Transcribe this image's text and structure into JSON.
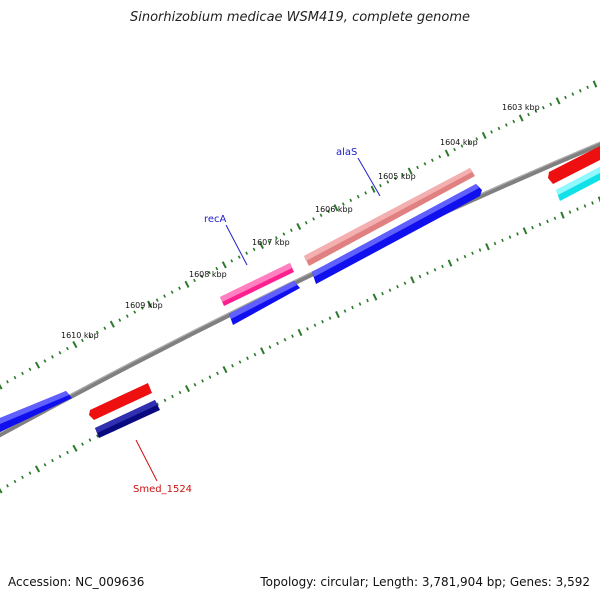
{
  "title": "Sinorhizobium medicae WSM419, complete genome",
  "footer": {
    "accession": "Accession: NC_009636",
    "summary": "Topology: circular; Length: 3,781,904 bp; Genes: 3,592"
  },
  "colors": {
    "backbone": "#808080",
    "ticks": "#2a7a2a",
    "blue": "#1010ee",
    "navy": "#0a0a80",
    "red": "#ee1010",
    "salmon": "#e08080",
    "magenta": "#ff2090",
    "cyan": "#10e0e8",
    "label_blue": "#2020cc",
    "label_red": "#cc1010"
  },
  "tick_labels": [
    "1603 kbp",
    "1604 kbp",
    "1605 kbp",
    "1606 kbp",
    "1607 kbp",
    "1608 kbp",
    "1609 kbp",
    "1610 kbp"
  ],
  "gene_labels": [
    "alaS",
    "recA",
    "Smed_1524"
  ]
}
